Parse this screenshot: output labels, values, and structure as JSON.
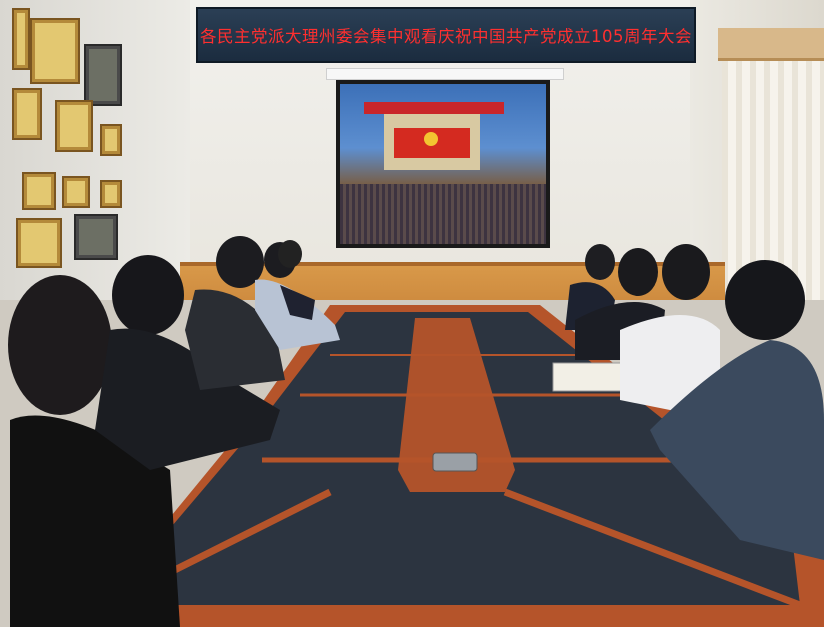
{
  "banner": {
    "text": "各民主党派大理州委会集中观看庆祝中国共产党成立105周年大会",
    "text_color": "#ff2f2f",
    "background": "#1f3246"
  },
  "scene": {
    "wood_color": "#b5542a",
    "table_top_color": "#2c3440"
  }
}
